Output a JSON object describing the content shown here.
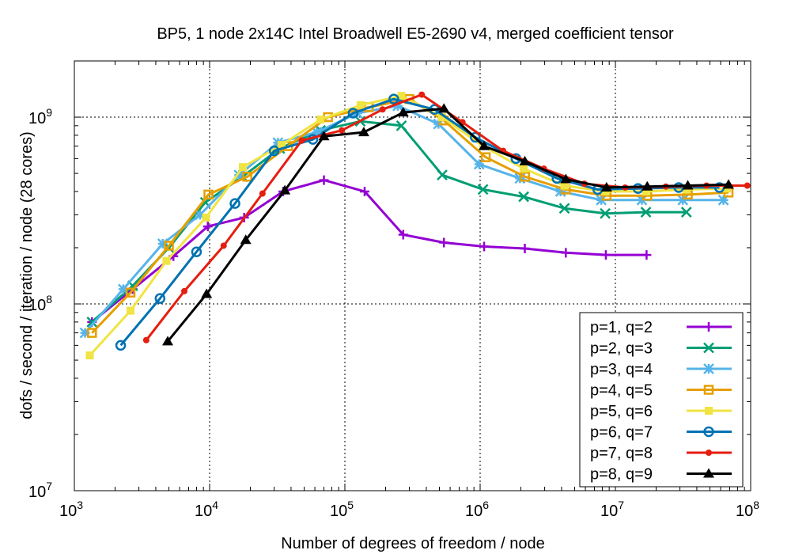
{
  "chart_data": {
    "type": "line",
    "title": "BP5, 1 node 2x14C Intel Broadwell E5-2690 v4, merged coefficient tensor",
    "xlabel": "Number of degrees of freedom / node",
    "ylabel": "dofs / second / iteration / node (28 cores)",
    "x_scale": "log",
    "y_scale": "log",
    "xlim": [
      1000,
      100000000
    ],
    "ylim": [
      10000000,
      2000000000
    ],
    "x_ticks": [
      {
        "base": "10",
        "exp": "3",
        "value": 1000
      },
      {
        "base": "10",
        "exp": "4",
        "value": 10000
      },
      {
        "base": "10",
        "exp": "5",
        "value": 100000
      },
      {
        "base": "10",
        "exp": "6",
        "value": 1000000
      },
      {
        "base": "10",
        "exp": "7",
        "value": 10000000
      },
      {
        "base": "10",
        "exp": "8",
        "value": 100000000
      }
    ],
    "y_ticks": [
      {
        "base": "10",
        "exp": "7",
        "value": 10000000
      },
      {
        "base": "10",
        "exp": "8",
        "value": 100000000
      },
      {
        "base": "10",
        "exp": "9",
        "value": 1000000000
      }
    ],
    "grid": true,
    "legend_position": "bottom-right",
    "series": [
      {
        "name": "p=1, q=2",
        "color": "#9400d3",
        "marker": "plus",
        "x": [
          1350,
          2700,
          5400,
          9700,
          18000,
          35000,
          70000,
          140000,
          270000,
          540000,
          1070000,
          2140000,
          4300000,
          8500000,
          17000000
        ],
        "y": [
          80000000,
          120000000,
          180000000,
          260000000,
          290000000,
          400000000,
          460000000,
          400000000,
          235000000,
          213000000,
          203000000,
          198000000,
          188000000,
          183000000,
          183000000
        ]
      },
      {
        "name": "p=2, q=3",
        "color": "#009e73",
        "marker": "x",
        "x": [
          1350,
          2700,
          5000,
          9300,
          17500,
          33000,
          66000,
          130000,
          262000,
          524000,
          1050000,
          2100000,
          4200000,
          8400000,
          16800000,
          33500000
        ],
        "y": [
          80000000,
          125000000,
          200000000,
          350000000,
          480000000,
          680000000,
          850000000,
          950000000,
          900000000,
          490000000,
          410000000,
          375000000,
          325000000,
          305000000,
          310000000,
          310000000
        ]
      },
      {
        "name": "p=3, q=4",
        "color": "#56b4e9",
        "marker": "star",
        "x": [
          1200,
          2300,
          4500,
          8500,
          16500,
          32000,
          62000,
          124000,
          246000,
          492000,
          984000,
          1970000,
          3930000,
          7860000,
          15700000,
          31500000,
          62900000
        ],
        "y": [
          70000000,
          120000000,
          210000000,
          300000000,
          490000000,
          730000000,
          830000000,
          1050000000,
          1150000000,
          920000000,
          560000000,
          470000000,
          400000000,
          360000000,
          360000000,
          360000000,
          360000000
        ]
      },
      {
        "name": "p=4, q=5",
        "color": "#e69f00",
        "marker": "square",
        "x": [
          1350,
          2600,
          5000,
          9800,
          19000,
          38000,
          75000,
          150000,
          300000,
          540000,
          1100000,
          2150000,
          4300000,
          8600000,
          17200000,
          34300000,
          68600000
        ],
        "y": [
          70000000,
          115000000,
          205000000,
          385000000,
          480000000,
          700000000,
          1000000000,
          1130000000,
          1250000000,
          960000000,
          610000000,
          480000000,
          410000000,
          380000000,
          380000000,
          385000000,
          395000000
        ]
      },
      {
        "name": "p=5, q=6",
        "color": "#f0e442",
        "marker": "fsquare",
        "x": [
          1300,
          2600,
          4800,
          9400,
          17600,
          34000,
          66000,
          131000,
          262000,
          524000,
          1050000,
          2100000,
          4200000,
          8400000,
          16800000,
          33500000,
          67000000
        ],
        "y": [
          53000000,
          92000000,
          170000000,
          290000000,
          540000000,
          710000000,
          970000000,
          1160000000,
          1300000000,
          1000000000,
          700000000,
          530000000,
          430000000,
          400000000,
          400000000,
          410000000,
          415000000
        ]
      },
      {
        "name": "p=6, q=7",
        "color": "#0072b2",
        "marker": "circle",
        "x": [
          2200,
          4300,
          8000,
          15400,
          30000,
          58000,
          115000,
          230000,
          460000,
          920000,
          1840000,
          3700000,
          7400000,
          14700000,
          29400000,
          58800000
        ],
        "y": [
          60000000,
          107000000,
          190000000,
          345000000,
          660000000,
          760000000,
          1050000000,
          1250000000,
          1100000000,
          780000000,
          600000000,
          470000000,
          410000000,
          415000000,
          420000000,
          420000000
        ]
      },
      {
        "name": "p=7, q=8",
        "color": "#e51e10",
        "marker": "fcircle",
        "x": [
          3400,
          6500,
          12700,
          24600,
          48000,
          95000,
          190000,
          370000,
          740000,
          1480000,
          2960000,
          5900000,
          11800000,
          23600000,
          47200000,
          94400000
        ],
        "y": [
          64000000,
          117000000,
          205000000,
          390000000,
          750000000,
          850000000,
          1100000000,
          1320000000,
          940000000,
          660000000,
          530000000,
          440000000,
          420000000,
          425000000,
          430000000,
          430000000
        ]
      },
      {
        "name": "p=8, q=9",
        "color": "#000000",
        "marker": "triangle",
        "x": [
          4900,
          9500,
          18500,
          36000,
          70000,
          138000,
          270000,
          540000,
          1070000,
          2140000,
          4300000,
          8600000,
          17200000,
          34300000,
          68600000
        ],
        "y": [
          63000000,
          113000000,
          220000000,
          405000000,
          790000000,
          830000000,
          1060000000,
          1110000000,
          700000000,
          580000000,
          465000000,
          420000000,
          425000000,
          430000000,
          435000000
        ]
      }
    ]
  }
}
